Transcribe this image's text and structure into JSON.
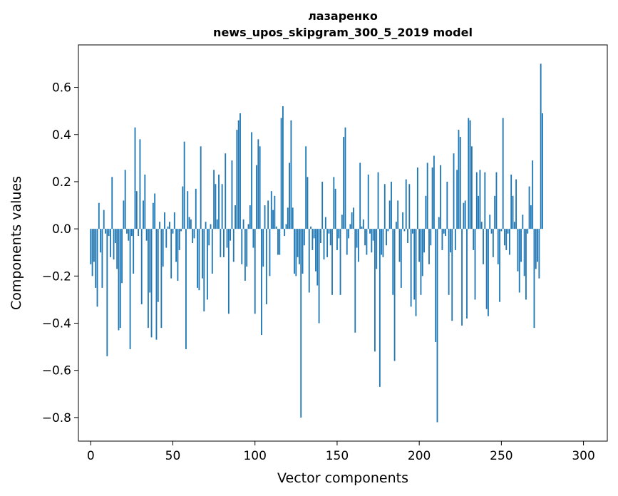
{
  "chart_data": {
    "type": "bar",
    "title": "лазаренко",
    "subtitle": "news_upos_skipgram_300_5_2019 model",
    "xlabel": "Vector components",
    "ylabel": "Components values",
    "xlim": [
      -7.5,
      314.5
    ],
    "ylim": [
      -0.9,
      0.78
    ],
    "xticks": [
      0,
      50,
      100,
      150,
      200,
      250,
      300
    ],
    "yticks": [
      -0.8,
      -0.6,
      -0.4,
      -0.2,
      0.0,
      0.2,
      0.4,
      0.6
    ],
    "ytick_labels": [
      "−0.8",
      "−0.6",
      "−0.4",
      "−0.2",
      "0.0",
      "0.2",
      "0.4",
      "0.6"
    ],
    "bar_color": "#1f77b4",
    "grid": false,
    "values": [
      -0.15,
      -0.2,
      -0.14,
      -0.25,
      -0.33,
      0.11,
      -0.1,
      -0.25,
      0.08,
      -0.02,
      -0.54,
      -0.03,
      -0.12,
      0.22,
      -0.13,
      -0.06,
      -0.17,
      -0.43,
      -0.42,
      -0.23,
      0.12,
      0.25,
      -0.02,
      -0.05,
      -0.51,
      -0.03,
      -0.19,
      0.43,
      0.16,
      -0.03,
      0.38,
      -0.32,
      0.12,
      0.23,
      -0.05,
      -0.42,
      -0.27,
      -0.46,
      0.11,
      0.15,
      -0.47,
      -0.31,
      0.03,
      -0.42,
      -0.16,
      0.07,
      -0.08,
      0.01,
      0.03,
      -0.21,
      -0.02,
      0.07,
      -0.14,
      -0.22,
      -0.09,
      -0.01,
      0.18,
      0.37,
      -0.51,
      0.16,
      0.05,
      0.04,
      -0.06,
      -0.04,
      0.17,
      -0.25,
      -0.26,
      0.35,
      -0.21,
      -0.35,
      0.03,
      -0.3,
      -0.07,
      0.02,
      -0.19,
      0.25,
      0.19,
      0.04,
      0.23,
      -0.12,
      0.19,
      -0.12,
      0.32,
      -0.08,
      -0.36,
      -0.05,
      0.29,
      -0.14,
      0.1,
      0.42,
      0.46,
      0.49,
      -0.15,
      0.04,
      -0.22,
      -0.16,
      0.02,
      0.1,
      0.41,
      -0.08,
      -0.36,
      0.27,
      0.38,
      0.35,
      -0.45,
      -0.16,
      0.1,
      -0.32,
      0.12,
      -0.2,
      0.16,
      0.08,
      0.14,
      0.01,
      -0.11,
      -0.11,
      0.47,
      0.52,
      -0.03,
      0.02,
      0.09,
      0.28,
      0.46,
      0.09,
      -0.19,
      -0.2,
      -0.12,
      -0.15,
      -0.8,
      -0.19,
      -0.07,
      0.35,
      0.22,
      -0.27,
      0.01,
      -0.09,
      -0.04,
      -0.18,
      -0.24,
      -0.4,
      -0.06,
      0.2,
      -0.13,
      0.05,
      -0.12,
      -0.02,
      -0.07,
      -0.28,
      0.22,
      0.17,
      -0.09,
      -0.04,
      -0.28,
      0.06,
      0.39,
      0.43,
      -0.11,
      -0.04,
      0.02,
      0.07,
      0.09,
      -0.44,
      -0.08,
      -0.14,
      0.28,
      0.01,
      0.04,
      -0.07,
      -0.11,
      0.23,
      -0.02,
      -0.1,
      -0.05,
      -0.52,
      -0.17,
      0.24,
      -0.67,
      -0.11,
      -0.12,
      0.19,
      -0.07,
      -0.01,
      0.12,
      0.2,
      -0.28,
      -0.56,
      0.03,
      0.12,
      -0.14,
      -0.25,
      0.07,
      -0.01,
      0.21,
      -0.06,
      0.19,
      -0.33,
      -0.02,
      -0.3,
      -0.37,
      0.26,
      -0.14,
      -0.28,
      -0.2,
      -0.1,
      0.14,
      0.28,
      -0.15,
      -0.07,
      0.26,
      0.31,
      -0.48,
      -0.82,
      0.05,
      0.27,
      -0.09,
      -0.02,
      -0.03,
      0.2,
      -0.28,
      -0.1,
      -0.39,
      0.32,
      -0.09,
      0.25,
      0.42,
      0.39,
      -0.41,
      0.11,
      0.12,
      -0.38,
      0.47,
      0.46,
      0.35,
      -0.09,
      -0.3,
      0.24,
      0.14,
      0.25,
      0.03,
      -0.15,
      0.24,
      -0.34,
      -0.37,
      0.06,
      -0.02,
      -0.12,
      0.14,
      0.24,
      -0.15,
      -0.31,
      -0.01,
      0.47,
      -0.07,
      -0.09,
      -0.02,
      -0.11,
      0.23,
      0.14,
      0.03,
      0.21,
      -0.18,
      -0.27,
      -0.14,
      0.06,
      -0.2,
      -0.3,
      -0.02,
      0.18,
      0.1,
      0.29,
      -0.42,
      -0.17,
      -0.14,
      -0.21,
      0.7,
      0.49
    ]
  }
}
